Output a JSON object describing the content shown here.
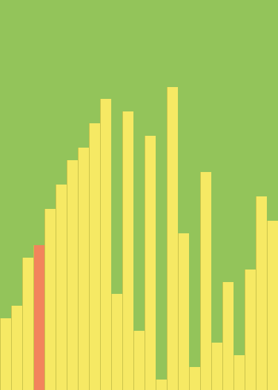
{
  "colors": {
    "background": "#93c45a",
    "bar": "#f6e964",
    "highlight": "#f2845c"
  },
  "bars": {
    "scale_max": 560,
    "highlighted_index": 3,
    "heights": [
      103,
      121,
      190,
      208,
      260,
      295,
      330,
      348,
      383,
      418,
      138,
      400,
      85,
      365,
      15,
      435,
      225,
      33,
      313,
      68,
      155,
      50,
      173,
      278,
      243
    ]
  }
}
